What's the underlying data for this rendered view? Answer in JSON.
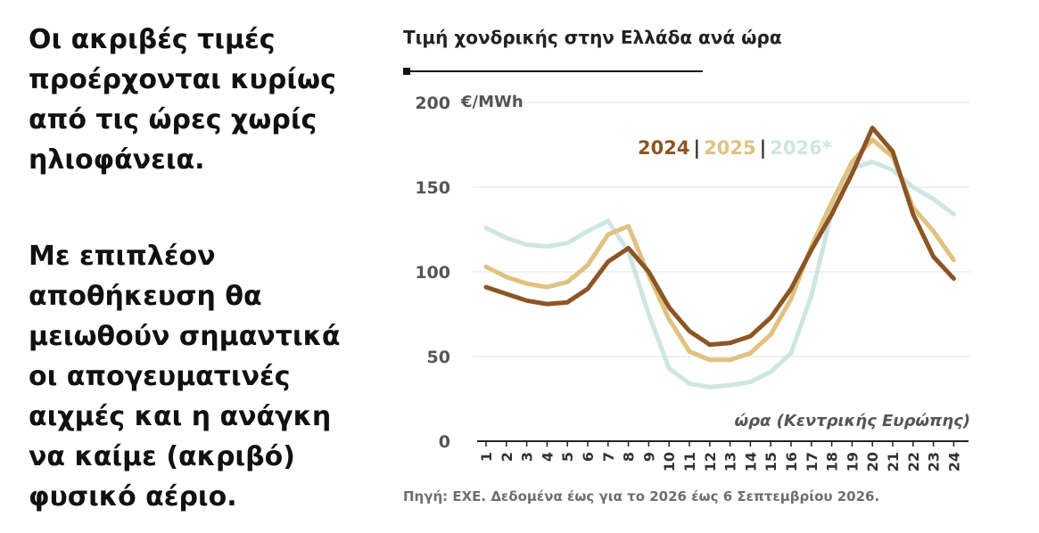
{
  "left_text": {
    "paragraph1": [
      "Οι ακριβές τιμές",
      "προέρχονται κυρίως",
      "από τις ώρες χωρίς",
      "ηλιοφάνεια."
    ],
    "paragraph2": [
      "Με επιπλέον",
      "αποθήκευση θα",
      "μειωθούν σημαντικά",
      "οι απογευματινές",
      "αιχμές και η ανάγκη",
      "να καίμε (ακριβό)",
      "φυσικό αέριο."
    ]
  },
  "source": "Πηγή: ΕΧΕ. Δεδομένα έως για το 2026 έως 6 Σεπτεμβρίου 2026.",
  "chart_data": {
    "type": "line",
    "title": "Τιμή χονδρικής στην Ελλάδα ανά ώρα",
    "ylabel": "€/MWh",
    "xlabel": "ώρα (Κεντρικής Ευρώπης)",
    "ylim": [
      0,
      200
    ],
    "y_ticks": [
      "0",
      "50",
      "100",
      "150",
      "200"
    ],
    "y_tick_values": [
      0,
      50,
      100,
      150,
      200
    ],
    "x": [
      "1",
      "2",
      "3",
      "4",
      "5",
      "6",
      "7",
      "8",
      "9",
      "10",
      "11",
      "12",
      "13",
      "14",
      "15",
      "16",
      "17",
      "18",
      "19",
      "20",
      "21",
      "22",
      "23",
      "24"
    ],
    "grid": true,
    "legend_position": "top-right",
    "legend_separator": "|",
    "series": [
      {
        "name": "2024",
        "color": "#8c5524",
        "values": [
          91,
          87,
          83,
          81,
          82,
          90,
          106,
          114,
          100,
          79,
          65,
          57,
          58,
          62,
          73,
          90,
          113,
          134,
          158,
          185,
          171,
          134,
          109,
          96
        ]
      },
      {
        "name": "2025",
        "color": "#e0c180",
        "values": [
          103,
          97,
          93,
          91,
          94,
          104,
          122,
          127,
          98,
          72,
          53,
          48,
          48,
          52,
          63,
          84,
          115,
          141,
          165,
          178,
          168,
          138,
          124,
          107
        ]
      },
      {
        "name": "2026*",
        "color": "#cde6e4",
        "values": [
          126,
          120,
          116,
          115,
          117,
          124,
          130,
          112,
          75,
          43,
          34,
          32,
          33,
          35,
          41,
          52,
          86,
          135,
          161,
          165,
          160,
          150,
          143,
          134
        ]
      }
    ]
  }
}
